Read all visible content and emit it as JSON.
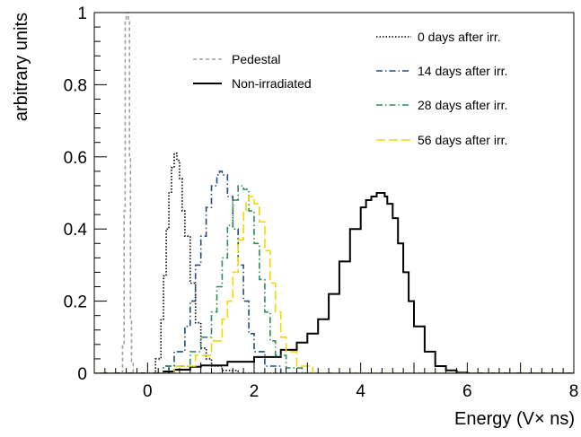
{
  "chart_data": {
    "type": "line",
    "title": "",
    "xlabel": "Energy (V× ns)",
    "ylabel": "arbitrary units",
    "xlim": [
      -1,
      8
    ],
    "ylim": [
      0,
      1
    ],
    "x_ticks": [
      0,
      2,
      4,
      6,
      8
    ],
    "y_ticks": [
      0,
      0.2,
      0.4,
      0.6,
      0.8,
      1
    ],
    "y_tick_labels": [
      "0",
      "0.2",
      "0.4",
      "0.6",
      "0.8",
      "1"
    ],
    "grid": false,
    "legend": [
      {
        "label": "Pedestal",
        "position": "upper-left"
      },
      {
        "label": "Non-irradiated",
        "position": "upper-left"
      },
      {
        "label": "0 days after irr.",
        "position": "upper-right"
      },
      {
        "label": "14 days after irr.",
        "position": "upper-right"
      },
      {
        "label": "28 days after irr.",
        "position": "upper-right"
      },
      {
        "label": "56 days after irr.",
        "position": "upper-right"
      }
    ],
    "series": [
      {
        "name": "Pedestal",
        "color": "#a0a0a0",
        "dash": "4,3",
        "x": [
          -0.6,
          -0.5,
          -0.47,
          -0.44,
          -0.42,
          -0.4,
          -0.38,
          -0.36,
          -0.34,
          -0.32,
          -0.3,
          -0.27,
          -0.2,
          8
        ],
        "y": [
          0,
          0,
          0.08,
          0.45,
          0.98,
          1.0,
          1.0,
          0.98,
          0.6,
          0.15,
          0.03,
          0,
          0,
          0
        ]
      },
      {
        "name": "Non-irradiated",
        "color": "#000000",
        "dash": "",
        "x": [
          -1,
          0.1,
          0.3,
          0.5,
          0.8,
          1.0,
          1.5,
          2.0,
          2.5,
          2.8,
          3.0,
          3.2,
          3.4,
          3.6,
          3.8,
          4.0,
          4.1,
          4.2,
          4.3,
          4.35,
          4.45,
          4.5,
          4.6,
          4.7,
          4.8,
          4.9,
          5.0,
          5.2,
          5.4,
          5.6,
          5.8,
          6.0,
          8
        ],
        "y": [
          0,
          0,
          0.005,
          0.01,
          0.018,
          0.022,
          0.032,
          0.045,
          0.065,
          0.085,
          0.11,
          0.15,
          0.22,
          0.31,
          0.4,
          0.46,
          0.48,
          0.49,
          0.5,
          0.5,
          0.49,
          0.47,
          0.43,
          0.36,
          0.28,
          0.2,
          0.13,
          0.06,
          0.02,
          0.008,
          0.002,
          0,
          0
        ]
      },
      {
        "name": "0 days after irr.",
        "color": "#000000",
        "dash": "1.5,2",
        "x": [
          -1,
          0.05,
          0.15,
          0.25,
          0.3,
          0.35,
          0.4,
          0.45,
          0.5,
          0.55,
          0.6,
          0.65,
          0.7,
          0.8,
          0.9,
          1.0,
          1.1,
          1.2,
          1.4,
          1.7,
          8
        ],
        "y": [
          0,
          0,
          0.04,
          0.15,
          0.27,
          0.4,
          0.5,
          0.57,
          0.61,
          0.59,
          0.54,
          0.45,
          0.38,
          0.25,
          0.14,
          0.07,
          0.04,
          0.02,
          0.008,
          0,
          0
        ]
      },
      {
        "name": "14 days after irr.",
        "color": "#1f4e79",
        "dash": "7,3,1.5,3",
        "x": [
          -1,
          0.1,
          0.3,
          0.5,
          0.7,
          0.8,
          0.9,
          1.0,
          1.1,
          1.2,
          1.3,
          1.35,
          1.4,
          1.5,
          1.6,
          1.7,
          1.8,
          1.9,
          2.0,
          2.2,
          2.5,
          8
        ],
        "y": [
          0,
          0,
          0.02,
          0.06,
          0.13,
          0.2,
          0.3,
          0.38,
          0.46,
          0.52,
          0.55,
          0.56,
          0.55,
          0.49,
          0.4,
          0.3,
          0.2,
          0.11,
          0.06,
          0.02,
          0,
          0
        ]
      },
      {
        "name": "28 days after irr.",
        "color": "#2e8b57",
        "dash": "7,3,1.5,3",
        "x": [
          -1,
          0.1,
          0.4,
          0.8,
          1.0,
          1.2,
          1.3,
          1.4,
          1.5,
          1.6,
          1.7,
          1.75,
          1.8,
          1.9,
          2.0,
          2.1,
          2.2,
          2.3,
          2.4,
          2.6,
          2.9,
          8
        ],
        "y": [
          0,
          0,
          0.02,
          0.06,
          0.1,
          0.17,
          0.24,
          0.32,
          0.41,
          0.48,
          0.52,
          0.52,
          0.51,
          0.45,
          0.36,
          0.26,
          0.17,
          0.09,
          0.05,
          0.015,
          0,
          0
        ]
      },
      {
        "name": "56 days after irr.",
        "color": "#f0d800",
        "dash": "10,4",
        "x": [
          -1,
          0.2,
          0.5,
          0.9,
          1.2,
          1.4,
          1.5,
          1.6,
          1.7,
          1.8,
          1.85,
          1.9,
          2.0,
          2.1,
          2.2,
          2.3,
          2.4,
          2.5,
          2.6,
          2.8,
          3.1,
          8
        ],
        "y": [
          0,
          0,
          0.02,
          0.05,
          0.09,
          0.15,
          0.2,
          0.28,
          0.37,
          0.45,
          0.48,
          0.49,
          0.47,
          0.42,
          0.34,
          0.25,
          0.17,
          0.1,
          0.06,
          0.02,
          0,
          0
        ]
      }
    ]
  }
}
